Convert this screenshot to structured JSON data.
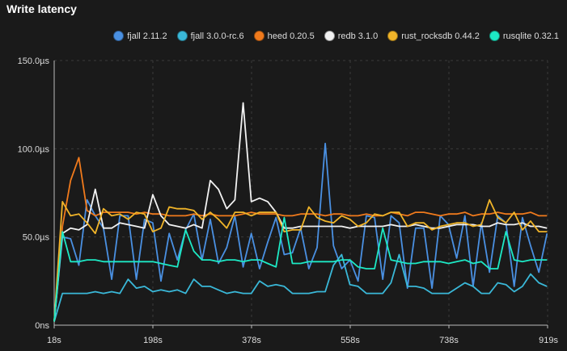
{
  "chart_data": {
    "type": "line",
    "title": "Write latency",
    "x_unit": "s",
    "xlim": [
      18,
      919
    ],
    "ylim": [
      0,
      150
    ],
    "y_unit": "µs",
    "x_ticks": [
      "18s",
      "198s",
      "378s",
      "558s",
      "738s",
      "919s"
    ],
    "y_ticks": [
      "0ns",
      "50.0µs",
      "100.0µs",
      "150.0µs"
    ],
    "grid": true,
    "legend_position": "top-right",
    "x": [
      18,
      33,
      48,
      63,
      78,
      93,
      108,
      123,
      138,
      153,
      168,
      183,
      198,
      213,
      228,
      243,
      258,
      273,
      288,
      303,
      318,
      333,
      348,
      363,
      378,
      393,
      408,
      423,
      438,
      453,
      468,
      483,
      498,
      513,
      528,
      543,
      558,
      573,
      588,
      603,
      618,
      633,
      648,
      663,
      678,
      693,
      708,
      723,
      738,
      753,
      768,
      783,
      798,
      813,
      828,
      843,
      858,
      873,
      888,
      903,
      918
    ],
    "series": [
      {
        "name": "fjall 2.11.2",
        "color": "#4a90e2",
        "values": [
          2,
          50,
          49,
          34,
          71,
          62,
          55,
          26,
          62,
          62,
          26,
          60,
          58,
          25,
          52,
          37,
          54,
          63,
          37,
          60,
          35,
          44,
          62,
          33,
          52,
          32,
          47,
          61,
          40,
          41,
          55,
          32,
          44,
          103,
          45,
          32,
          37,
          25,
          62,
          61,
          26,
          62,
          58,
          21,
          55,
          55,
          21,
          62,
          57,
          38,
          62,
          22,
          58,
          30,
          62,
          58,
          22,
          61,
          45,
          30,
          52
        ]
      },
      {
        "name": "fjall 3.0.0-rc.6",
        "color": "#3ab8d8",
        "values": [
          2,
          18,
          18,
          18,
          18,
          19,
          18,
          19,
          18,
          26,
          21,
          22,
          19,
          20,
          19,
          20,
          18,
          26,
          22,
          22,
          20,
          18,
          19,
          18,
          18,
          25,
          22,
          23,
          22,
          18,
          18,
          18,
          19,
          19,
          34,
          40,
          23,
          22,
          18,
          18,
          18,
          24,
          40,
          22,
          22,
          21,
          18,
          18,
          18,
          21,
          24,
          22,
          18,
          18,
          24,
          23,
          19,
          22,
          29,
          24,
          22
        ]
      },
      {
        "name": "heed 0.20.5",
        "color": "#f07a1c",
        "values": [
          2,
          56,
          82,
          95,
          65,
          62,
          64,
          64,
          64,
          64,
          63,
          64,
          63,
          63,
          62,
          62,
          62,
          63,
          62,
          63,
          62,
          62,
          62,
          63,
          64,
          63,
          63,
          63,
          62,
          62,
          63,
          63,
          63,
          62,
          63,
          63,
          62,
          62,
          63,
          62,
          62,
          64,
          63,
          62,
          64,
          64,
          63,
          62,
          63,
          63,
          64,
          62,
          63,
          63,
          64,
          63,
          63,
          63,
          64,
          62,
          62
        ]
      },
      {
        "name": "redb 3.1.0",
        "color": "#f2f2f2",
        "values": [
          2,
          52,
          55,
          54,
          57,
          77,
          55,
          55,
          58,
          57,
          56,
          55,
          74,
          62,
          57,
          56,
          55,
          57,
          55,
          82,
          77,
          66,
          71,
          126,
          70,
          72,
          70,
          64,
          55,
          55,
          56,
          56,
          56,
          56,
          56,
          56,
          55,
          56,
          56,
          56,
          56,
          57,
          56,
          56,
          57,
          56,
          55,
          55,
          56,
          57,
          57,
          57,
          56,
          56,
          58,
          57,
          57,
          58,
          56,
          56,
          55
        ]
      },
      {
        "name": "rust_rocksdb 0.44.2",
        "color": "#f0b429",
        "values": [
          2,
          70,
          62,
          63,
          58,
          52,
          66,
          62,
          63,
          60,
          64,
          63,
          53,
          55,
          67,
          66,
          66,
          65,
          60,
          64,
          60,
          55,
          64,
          64,
          62,
          64,
          64,
          64,
          53,
          54,
          54,
          67,
          61,
          59,
          58,
          62,
          60,
          56,
          58,
          63,
          62,
          64,
          64,
          56,
          58,
          58,
          54,
          56,
          57,
          58,
          58,
          56,
          57,
          71,
          61,
          58,
          64,
          54,
          59,
          53,
          53
        ]
      },
      {
        "name": "rusqlite 0.32.1",
        "color": "#1de9c5",
        "values": [
          2,
          53,
          36,
          36,
          37,
          37,
          36,
          36,
          36,
          36,
          36,
          36,
          36,
          35,
          34,
          33,
          54,
          42,
          37,
          37,
          36,
          37,
          37,
          36,
          37,
          37,
          35,
          33,
          61,
          35,
          35,
          36,
          36,
          36,
          36,
          37,
          37,
          33,
          32,
          32,
          55,
          37,
          36,
          35,
          35,
          36,
          36,
          36,
          35,
          36,
          37,
          35,
          36,
          32,
          32,
          53,
          37,
          36,
          37,
          37,
          37
        ]
      }
    ]
  }
}
